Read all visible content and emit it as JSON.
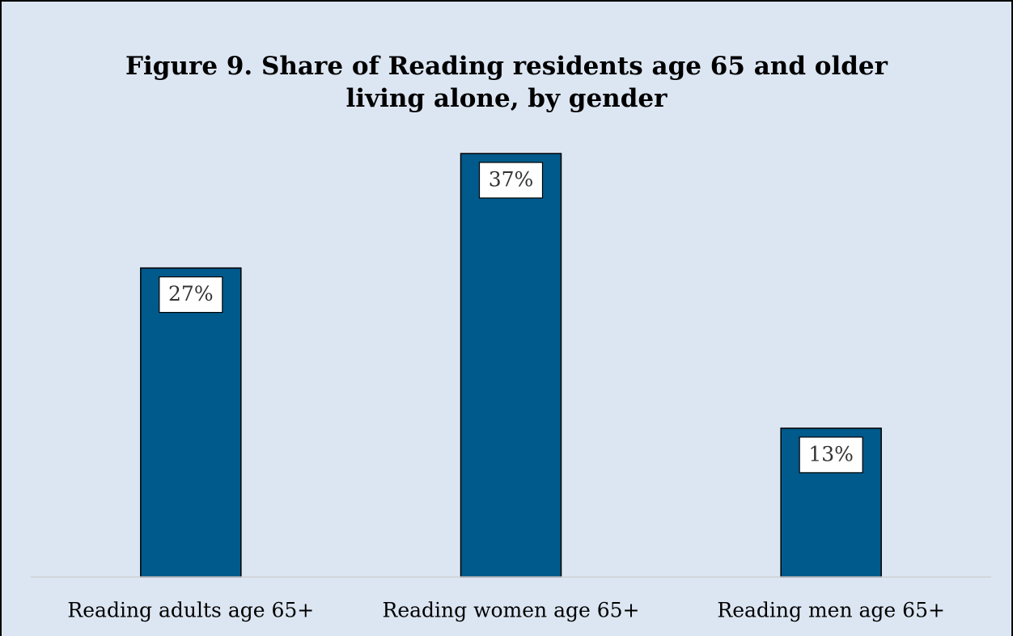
{
  "chart_data": {
    "type": "bar",
    "title": "Figure 9. Share of Reading residents age 65 and older living alone, by gender",
    "categories": [
      "Reading adults age 65+",
      "Reading women age 65+",
      "Reading men age 65+"
    ],
    "values": [
      27,
      37,
      13
    ],
    "value_labels": [
      "27%",
      "37%",
      "13%"
    ],
    "color": "#005a8c"
  }
}
